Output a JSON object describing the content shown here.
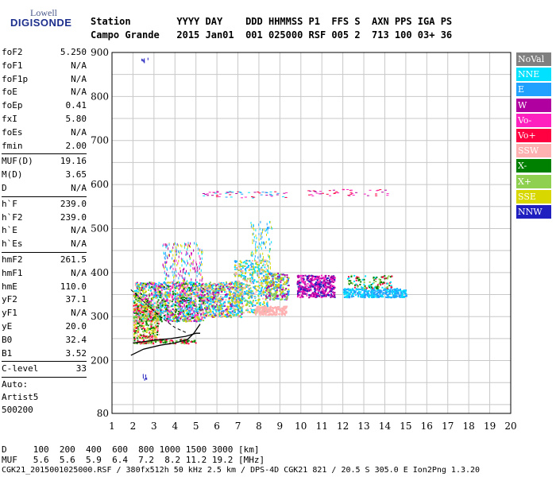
{
  "logo": {
    "line1": "Lowell",
    "line2": "DIGISONDE"
  },
  "header": {
    "row1": "Station        YYYY DAY    DDD HHMMSS P1  FFS S  AXN PPS IGA PS",
    "row2": "Campo Grande   2015 Jan01  001 025000 RSF 005 2  713 100 03+ 36"
  },
  "params": {
    "group1": [
      {
        "name": "foF2",
        "value": "5.250"
      },
      {
        "name": "foF1",
        "value": "N/A"
      },
      {
        "name": "foF1p",
        "value": "N/A"
      },
      {
        "name": "foE",
        "value": "N/A"
      },
      {
        "name": "foEp",
        "value": "0.41"
      },
      {
        "name": "fxI",
        "value": "5.80"
      },
      {
        "name": "foEs",
        "value": "N/A"
      },
      {
        "name": "fmin",
        "value": "2.00"
      }
    ],
    "group2": [
      {
        "name": "MUF(D)",
        "value": "19.16"
      },
      {
        "name": "M(D)",
        "value": "3.65"
      },
      {
        "name": "D",
        "value": "N/A"
      }
    ],
    "group3": [
      {
        "name": "h`F",
        "value": "239.0"
      },
      {
        "name": "h`F2",
        "value": "239.0"
      },
      {
        "name": "h`E",
        "value": "N/A"
      },
      {
        "name": "h`Es",
        "value": "N/A"
      }
    ],
    "group4": [
      {
        "name": "hmF2",
        "value": "261.5"
      },
      {
        "name": "hmF1",
        "value": "N/A"
      },
      {
        "name": "hmE",
        "value": "110.0"
      },
      {
        "name": "yF2",
        "value": "37.1"
      },
      {
        "name": "yF1",
        "value": "N/A"
      },
      {
        "name": "yE",
        "value": "20.0"
      },
      {
        "name": "B0",
        "value": "32.4"
      },
      {
        "name": "B1",
        "value": "3.52"
      }
    ],
    "group5": [
      {
        "name": "C-level",
        "value": "33"
      }
    ],
    "auto": [
      "Auto:",
      "Artist5",
      "500200"
    ]
  },
  "legend": [
    {
      "label": "NoVal",
      "color": "#808080"
    },
    {
      "label": "NNE",
      "color": "#00e0ff"
    },
    {
      "label": "E",
      "color": "#20a0ff"
    },
    {
      "label": "W",
      "color": "#b000a0"
    },
    {
      "label": "Vo-",
      "color": "#ff20c0"
    },
    {
      "label": "Vo+",
      "color": "#ff0040"
    },
    {
      "label": "SSW",
      "color": "#ffb0b0"
    },
    {
      "label": "X-",
      "color": "#008000"
    },
    {
      "label": "X+",
      "color": "#90d050"
    },
    {
      "label": "SSE",
      "color": "#d8d800"
    },
    {
      "label": "NNW",
      "color": "#2020c0"
    }
  ],
  "chart_data": {
    "type": "scatter",
    "xlim": [
      1,
      20
    ],
    "ylim": [
      80,
      900
    ],
    "xticks": [
      "1",
      "2",
      "3",
      "4",
      "5",
      "6",
      "7",
      "8",
      "9",
      "10",
      "11",
      "12",
      "13",
      "14",
      "15",
      "16",
      "17",
      "18",
      "19",
      "20"
    ],
    "yticks": [
      "80",
      "200",
      "300",
      "400",
      "500",
      "600",
      "700",
      "800",
      "900"
    ],
    "grid": true,
    "profile_curve": [
      [
        2.0,
        240
      ],
      [
        3.0,
        246
      ],
      [
        3.8,
        250
      ],
      [
        4.5,
        255
      ],
      [
        5.0,
        262
      ],
      [
        5.2,
        262
      ]
    ],
    "virtual_curve": [
      [
        1.9,
        212
      ],
      [
        2.5,
        226
      ],
      [
        3.3,
        235
      ],
      [
        4.0,
        240
      ],
      [
        4.6,
        248
      ],
      [
        4.9,
        262
      ],
      [
        5.2,
        283
      ]
    ],
    "dashed_curve": [
      [
        1.9,
        361
      ],
      [
        2.6,
        330
      ],
      [
        3.3,
        300
      ],
      [
        4.0,
        275
      ],
      [
        4.6,
        262
      ]
    ]
  },
  "bottom": {
    "row1": "D     100  200  400  600  800 1000 1500 3000 [km]",
    "row2": "MUF   5.6  5.6  5.9  6.4  7.2  8.2 11.2 19.2 [MHz]",
    "row3": "CGK21_2015001025000.RSF / 380fx512h 50 kHz 2.5 km / DPS-4D CGK21 821 / 20.5 S 305.0 E Ion2Png 1.3.20"
  }
}
